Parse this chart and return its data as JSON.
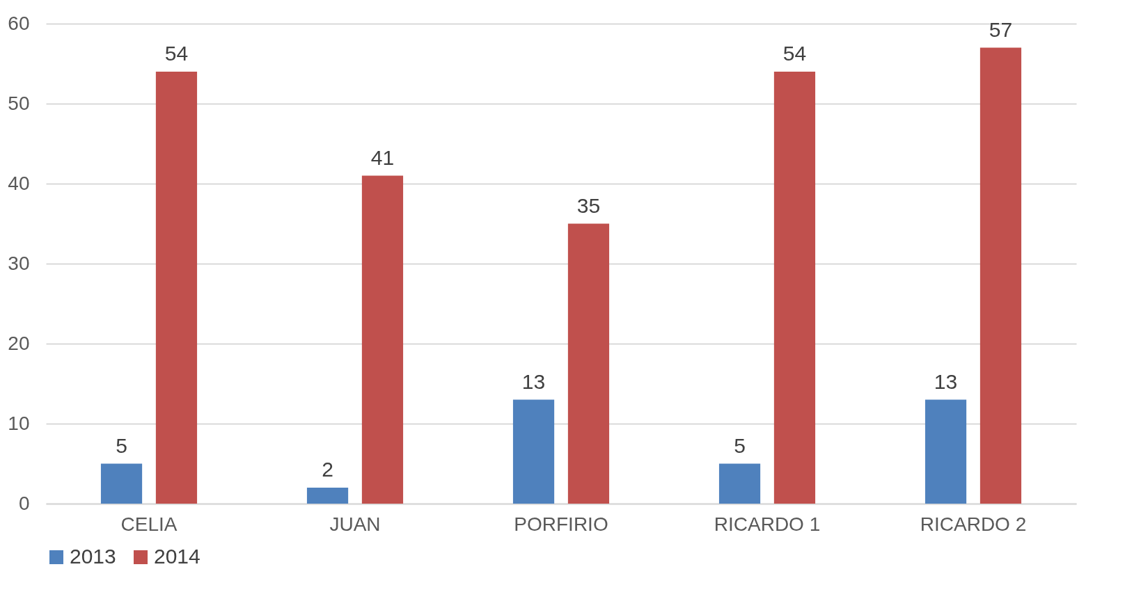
{
  "chart_data": {
    "type": "bar",
    "categories": [
      "CELIA",
      "JUAN",
      "PORFIRIO",
      "RICARDO 1",
      "RICARDO 2"
    ],
    "series": [
      {
        "name": "2013",
        "color": "#4f81bd",
        "values": [
          5,
          2,
          13,
          5,
          13
        ]
      },
      {
        "name": "2014",
        "color": "#c0504d",
        "values": [
          54,
          41,
          35,
          54,
          57
        ]
      }
    ],
    "ylim": [
      0,
      60
    ],
    "yticks": [
      0,
      10,
      20,
      30,
      40,
      50,
      60
    ],
    "grid": "y",
    "legend": "bottom",
    "data_labels": true
  }
}
